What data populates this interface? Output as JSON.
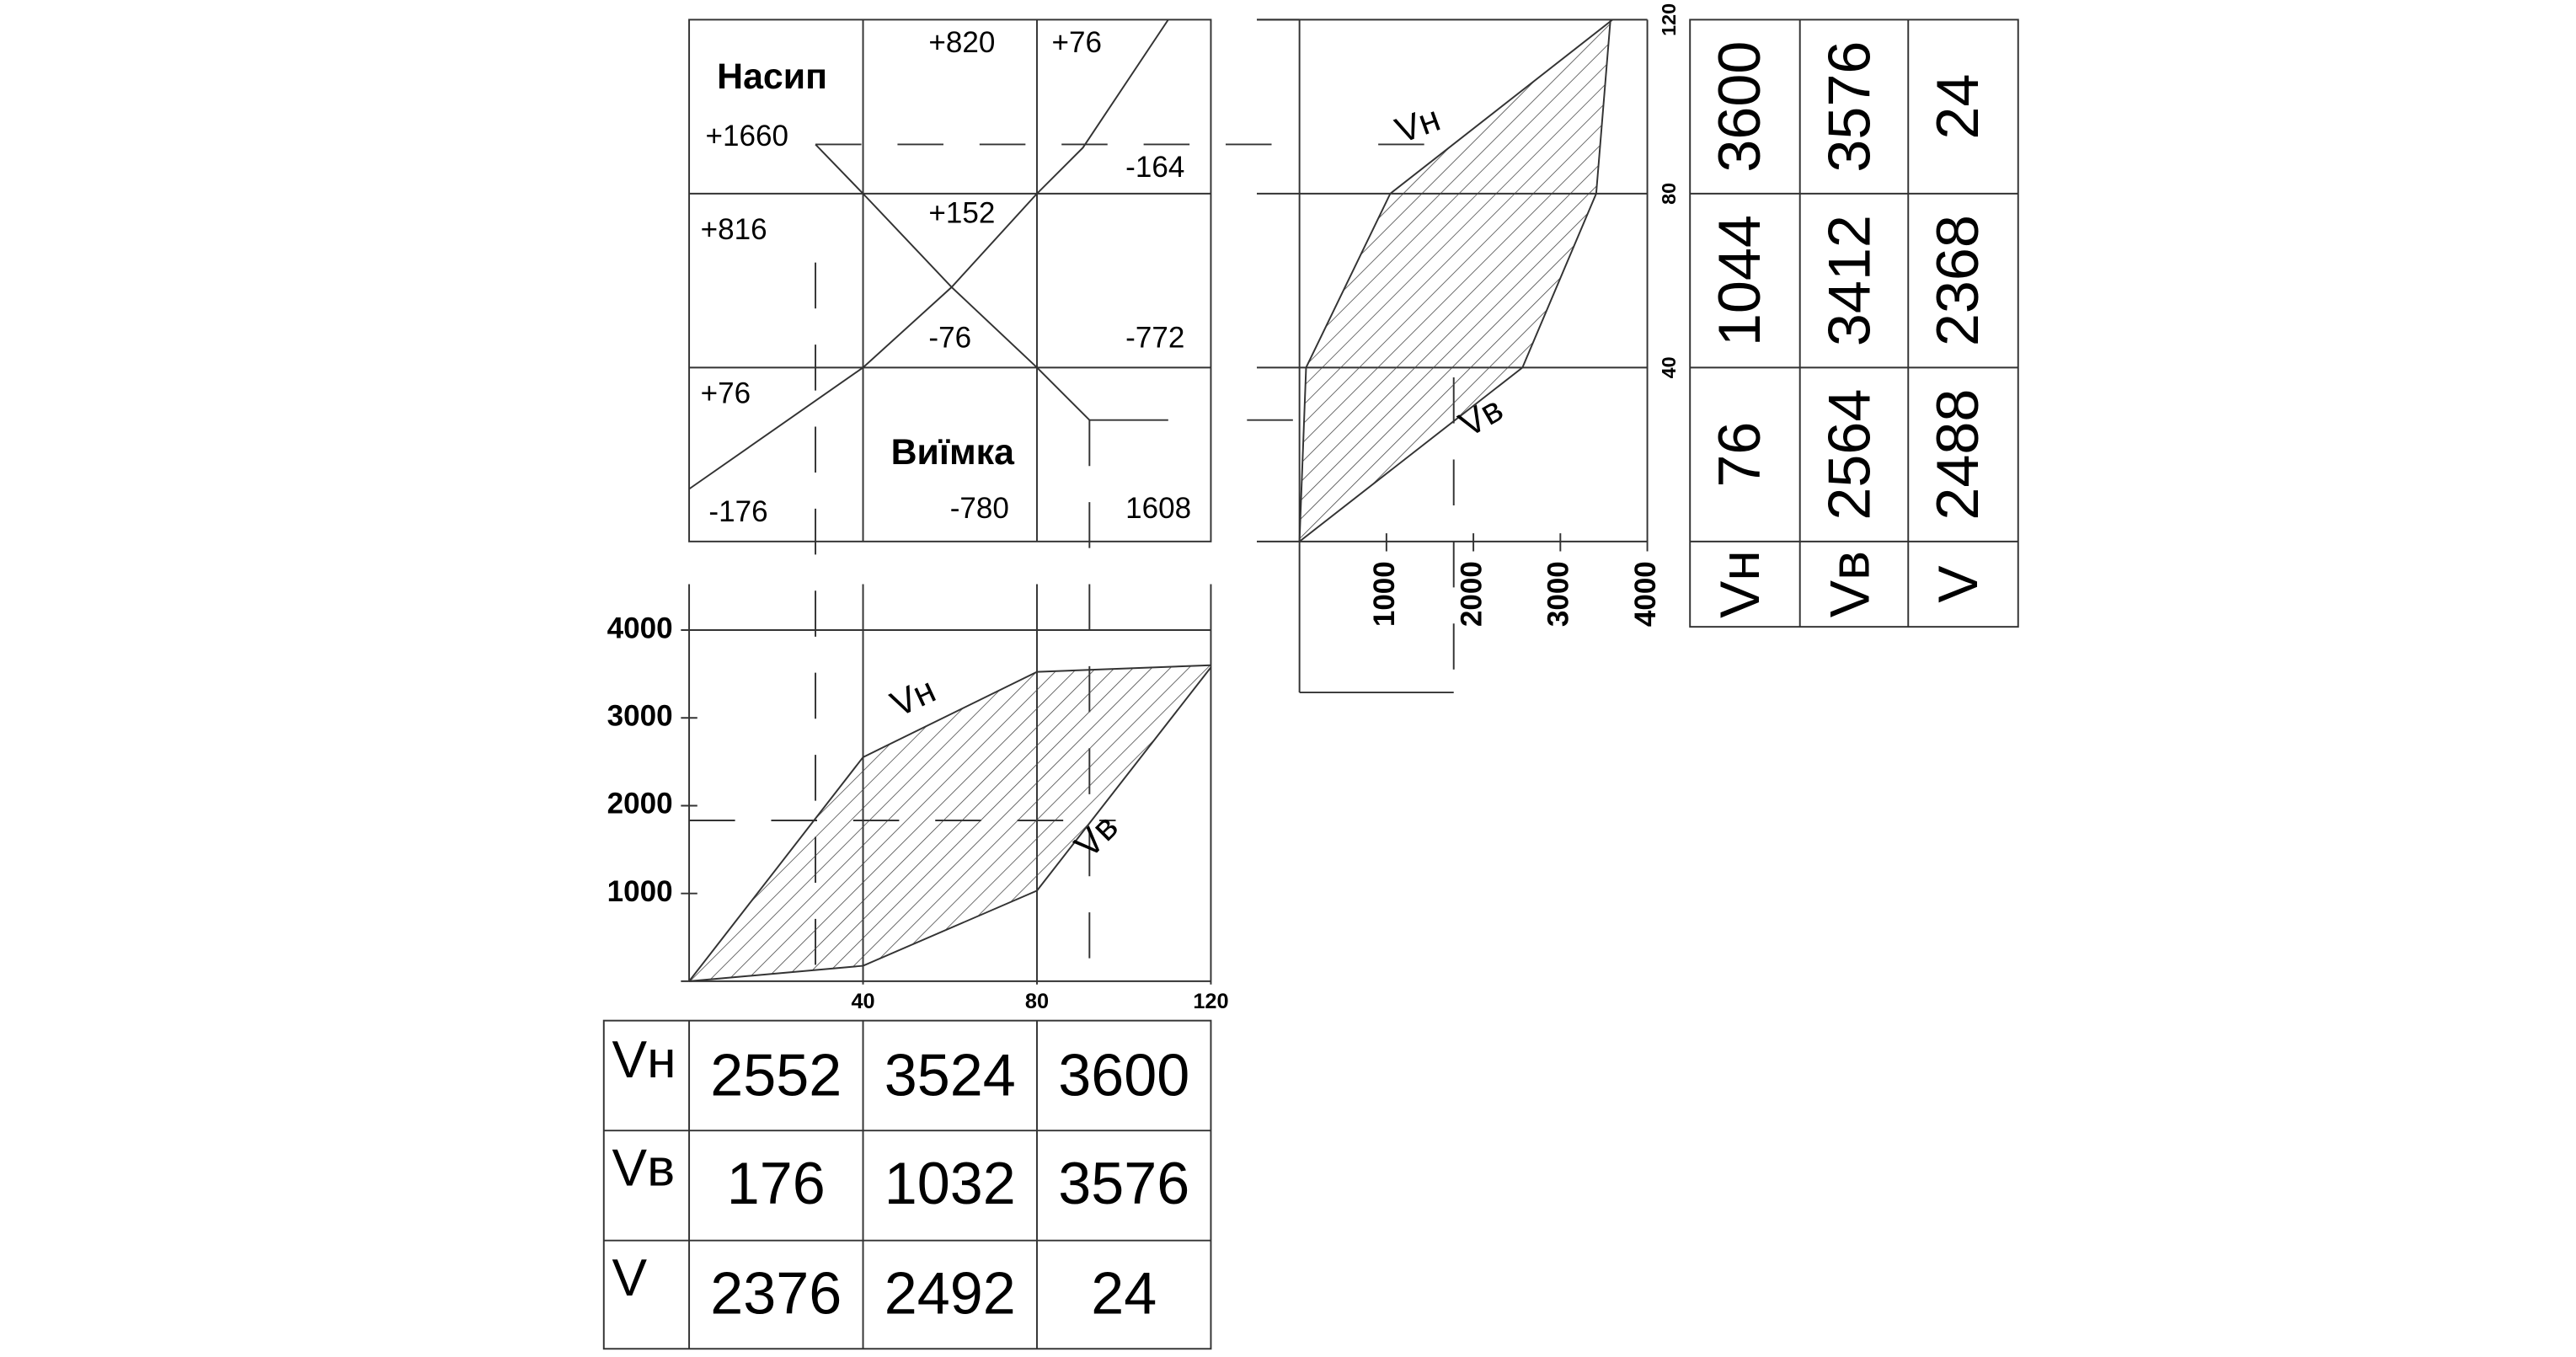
{
  "top_grid": {
    "labels": [
      "Насип",
      "+820",
      "+76",
      "+1660",
      "-164",
      "+816",
      "+152",
      "-76",
      "-772",
      "+76",
      "Виїмка",
      "-176",
      "-780",
      "1608"
    ]
  },
  "bottom_chart": {
    "xlim": [
      0,
      120
    ],
    "ylim": [
      0,
      4000
    ],
    "xticks": [
      40,
      80,
      120
    ],
    "yticks": [
      1000,
      2000,
      3000,
      4000
    ],
    "curve_labels": [
      "Vн",
      "Vв"
    ]
  },
  "right_chart": {
    "xlim": [
      0,
      4000
    ],
    "ylim": [
      0,
      120
    ],
    "xticks": [
      1000,
      2000,
      3000,
      4000
    ],
    "yticks": [
      40,
      80,
      120
    ],
    "curve_labels": [
      "Vн",
      "Vв"
    ]
  },
  "bottom_table": {
    "row_labels": [
      "Vн",
      "Vв",
      "V"
    ],
    "rows": [
      [
        2552,
        3524,
        3600
      ],
      [
        176,
        1032,
        3576
      ],
      [
        2376,
        2492,
        24
      ]
    ]
  },
  "right_table": {
    "column_labels": [
      "Vн",
      "Vв",
      "V"
    ],
    "columns": [
      [
        3600,
        1044,
        76
      ],
      [
        3576,
        3412,
        2564
      ],
      [
        24,
        2368,
        2488
      ]
    ]
  }
}
